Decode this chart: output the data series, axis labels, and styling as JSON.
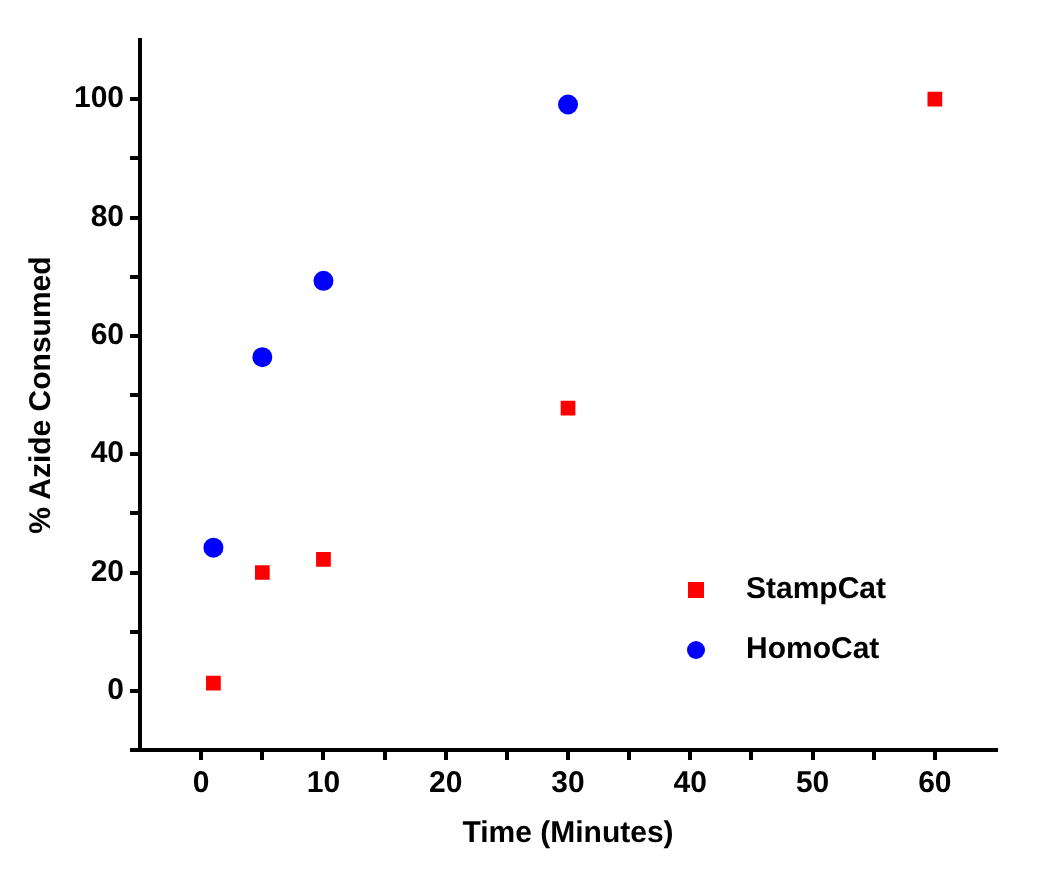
{
  "chart_data": {
    "type": "scatter",
    "xlabel": "Time (Minutes)",
    "ylabel": "% Azide Consumed",
    "series": [
      {
        "name": "StampCat",
        "color": "#ff0000",
        "marker": "square",
        "x": [
          1,
          5,
          10,
          30,
          60
        ],
        "values": [
          1.3,
          20,
          22.2,
          47.8,
          100
        ]
      },
      {
        "name": "HomoCat",
        "color": "#0000ff",
        "marker": "circle",
        "x": [
          1,
          5,
          10,
          30
        ],
        "values": [
          24.2,
          56.4,
          69.3,
          99.1
        ]
      }
    ],
    "xlim": [
      -5,
      65
    ],
    "xticks": [
      0,
      {
        "value": 5,
        "label": null
      },
      10,
      {
        "value": 15,
        "label": null
      },
      20,
      {
        "value": 25,
        "label": null
      },
      30,
      {
        "value": 35,
        "label": null
      },
      40,
      {
        "value": 45,
        "label": null
      },
      50,
      {
        "value": 55,
        "label": null
      },
      60
    ],
    "ylim": [
      -10,
      110
    ],
    "yticks": [
      {
        "value": -10,
        "label": null
      },
      0,
      {
        "value": 10,
        "label": null
      },
      20,
      {
        "value": 30,
        "label": null
      },
      40,
      {
        "value": 50,
        "label": null
      },
      60,
      {
        "value": 70,
        "label": null
      },
      80,
      {
        "value": 90,
        "label": null
      },
      100
    ],
    "grid": false,
    "legend": "bottom right"
  }
}
